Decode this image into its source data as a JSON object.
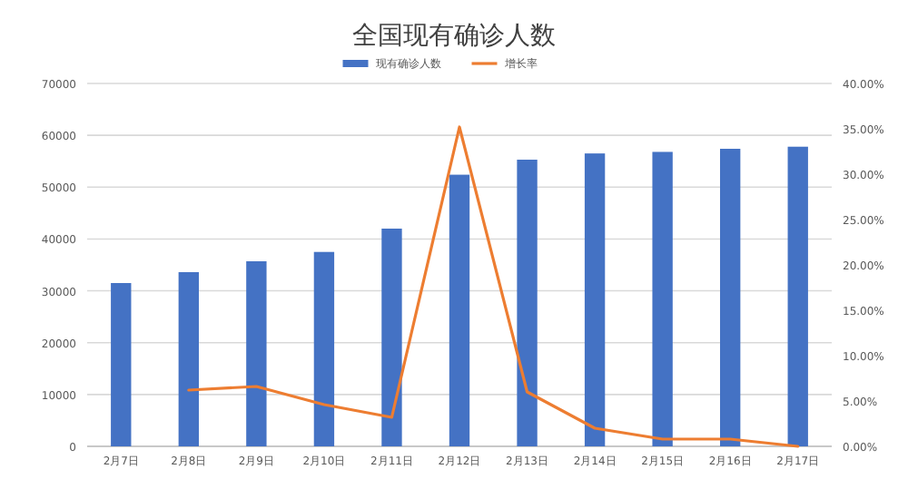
{
  "chart_data": {
    "type": "bar",
    "title": "全国现有确诊人数",
    "categories": [
      "2月7日",
      "2月8日",
      "2月9日",
      "2月10日",
      "2月11日",
      "2月12日",
      "2月13日",
      "2月14日",
      "2月15日",
      "2月16日",
      "2月17日"
    ],
    "series": [
      {
        "name": "现有确诊人数",
        "color": "#4472c4",
        "values": [
          31500,
          33600,
          35700,
          37500,
          42000,
          52400,
          55300,
          56500,
          56800,
          57400,
          57800
        ]
      },
      {
        "name": "增长率",
        "type": "line",
        "axis": "y2",
        "color": "#ed7d31",
        "values": [
          null,
          6.2,
          6.6,
          4.6,
          3.2,
          35.2,
          6,
          2,
          0.8,
          0.8,
          0
        ]
      }
    ],
    "ylim": [
      0,
      70000
    ],
    "yticks": [
      0,
      10000,
      20000,
      30000,
      40000,
      50000,
      60000,
      70000
    ],
    "y2lim": [
      0,
      40
    ],
    "y2ticks": [
      {
        "value": 0,
        "label": "0.00%"
      },
      {
        "value": 5,
        "label": "5.00%"
      },
      {
        "value": 10,
        "label": "10.00%"
      },
      {
        "value": 15,
        "label": "15.00%"
      },
      {
        "value": 20,
        "label": "20.00%"
      },
      {
        "value": 25,
        "label": "25.00%"
      },
      {
        "value": 30,
        "label": "30.00%"
      },
      {
        "value": 35,
        "label": "35.00%"
      },
      {
        "value": 40,
        "label": "40.00%"
      }
    ],
    "grid": "y",
    "legend": "top"
  }
}
